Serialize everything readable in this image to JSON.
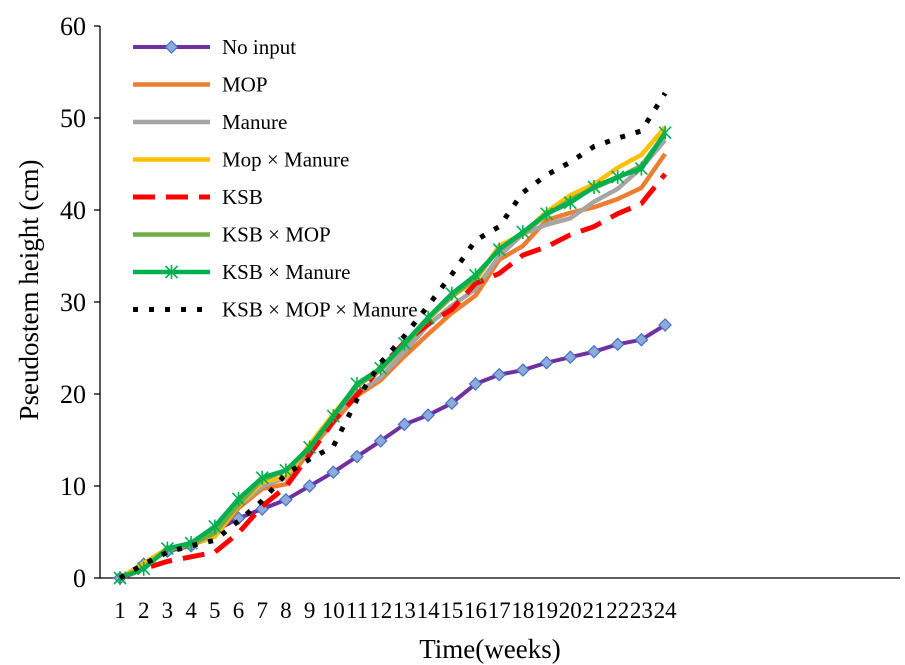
{
  "chart_data": {
    "type": "line",
    "title": "",
    "xlabel": "Time(weeks)",
    "ylabel": "Pseudostem height (cm)",
    "ylim": [
      0,
      60
    ],
    "yticks": [
      0,
      10,
      20,
      30,
      40,
      50,
      60
    ],
    "categories": [
      "1",
      "2",
      "3",
      "4",
      "5",
      "6",
      "7",
      "8",
      "9",
      "10",
      "11",
      "12",
      "13",
      "14",
      "15",
      "16",
      "17",
      "18",
      "19",
      "20",
      "21",
      "22",
      "23",
      "24"
    ],
    "grid": false,
    "legend_position": "top-left",
    "series": [
      {
        "name": "No input",
        "color": "#7030A0",
        "style": "solid-diamond",
        "values": [
          0,
          1.5,
          2.9,
          3.5,
          5.1,
          6.5,
          7.5,
          8.5,
          10.0,
          11.5,
          13.2,
          14.9,
          16.7,
          17.7,
          19.0,
          21.1,
          22.1,
          22.6,
          23.4,
          24.0,
          24.6,
          25.4,
          25.9,
          27.5
        ]
      },
      {
        "name": "MOP",
        "color": "#ED7D31",
        "style": "solid",
        "values": [
          0,
          1.5,
          3.1,
          3.6,
          4.5,
          7.6,
          9.7,
          10.2,
          13.9,
          16.9,
          19.8,
          21.5,
          24.1,
          26.5,
          28.8,
          30.7,
          34.6,
          36.1,
          38.9,
          39.7,
          40.3,
          41.2,
          42.4,
          46.1
        ]
      },
      {
        "name": "Manure",
        "color": "#A5A5A5",
        "style": "solid",
        "values": [
          0,
          1.6,
          3.2,
          3.7,
          4.8,
          7.9,
          10.0,
          10.9,
          14.3,
          17.6,
          20.1,
          21.8,
          24.6,
          27.5,
          29.6,
          31.4,
          35.0,
          37.4,
          38.4,
          39.1,
          40.9,
          42.3,
          44.6,
          47.6
        ]
      },
      {
        "name": "Mop × Manure",
        "color": "#FFC000",
        "style": "solid",
        "values": [
          0,
          1.6,
          3.2,
          3.7,
          4.5,
          7.9,
          10.4,
          11.0,
          14.5,
          17.8,
          20.9,
          22.6,
          25.3,
          28.1,
          30.6,
          32.3,
          36.1,
          37.4,
          39.8,
          41.6,
          42.8,
          44.6,
          46.0,
          49.0
        ]
      },
      {
        "name": "KSB",
        "color": "#FF0000",
        "style": "dashed",
        "values": [
          0,
          1.0,
          1.8,
          2.3,
          2.8,
          4.9,
          7.8,
          9.9,
          13.4,
          17.0,
          19.9,
          22.9,
          25.6,
          27.6,
          29.2,
          32.0,
          33.1,
          35.1,
          36.0,
          37.3,
          38.2,
          39.6,
          40.7,
          43.9
        ]
      },
      {
        "name": "KSB × MOP",
        "color": "#70AD47",
        "style": "solid",
        "values": [
          0,
          1.1,
          3.1,
          3.6,
          4.9,
          8.0,
          10.7,
          11.7,
          14.1,
          17.6,
          20.9,
          22.6,
          25.3,
          28.2,
          30.6,
          32.6,
          35.8,
          37.4,
          39.5,
          41.1,
          42.4,
          43.5,
          44.8,
          48.3
        ]
      },
      {
        "name": "KSB × Manure",
        "color": "#00B050",
        "style": "solid-star",
        "values": [
          0,
          1.0,
          3.2,
          3.8,
          5.6,
          8.6,
          10.9,
          11.7,
          14.2,
          17.6,
          21.1,
          22.8,
          25.5,
          28.3,
          30.9,
          32.9,
          35.7,
          37.6,
          39.6,
          40.8,
          42.5,
          43.6,
          44.5,
          48.4
        ]
      },
      {
        "name": "KSB × MOP × Manure",
        "color": "#000000",
        "style": "dotted",
        "values": [
          0,
          1.5,
          2.8,
          3.5,
          4.1,
          6.2,
          8.4,
          11.3,
          12.9,
          14.3,
          19.4,
          23.4,
          26.3,
          29.6,
          33.0,
          36.7,
          38.2,
          41.9,
          43.8,
          45.2,
          46.9,
          47.8,
          48.6,
          52.7
        ]
      }
    ]
  }
}
